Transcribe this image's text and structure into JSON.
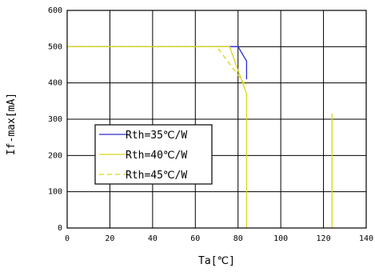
{
  "chart_data": {
    "type": "line",
    "xlabel": "Ta[℃]",
    "ylabel": "If-max[mA]",
    "xlim": [
      0,
      140
    ],
    "ylim": [
      0,
      600
    ],
    "x_ticks": [
      0,
      20,
      40,
      60,
      80,
      100,
      120,
      140
    ],
    "y_ticks": [
      0,
      100,
      200,
      300,
      400,
      500,
      600
    ],
    "grid": true,
    "legend_position": "left-middle",
    "series": [
      {
        "name": "Rth=35℃/W",
        "color": "#2b2bd6",
        "dash": "solid",
        "points": [
          [
            0,
            500
          ],
          [
            80,
            500
          ],
          [
            84,
            460
          ],
          [
            84,
            410
          ]
        ]
      },
      {
        "name": "Rth=40℃/W",
        "color": "#d6d61e",
        "dash": "solid",
        "points": [
          [
            0,
            500
          ],
          [
            76,
            500
          ],
          [
            84,
            370
          ],
          [
            84,
            0
          ]
        ]
      },
      {
        "name": "Rth=45℃/W",
        "color": "#d6d61e",
        "dash": "dashed",
        "points": [
          [
            0,
            500
          ],
          [
            70,
            500
          ],
          [
            84,
            390
          ]
        ]
      }
    ],
    "extra_segments": [
      {
        "color": "#d6d61e",
        "points": [
          [
            124,
            315
          ],
          [
            124,
            0
          ]
        ]
      }
    ]
  }
}
